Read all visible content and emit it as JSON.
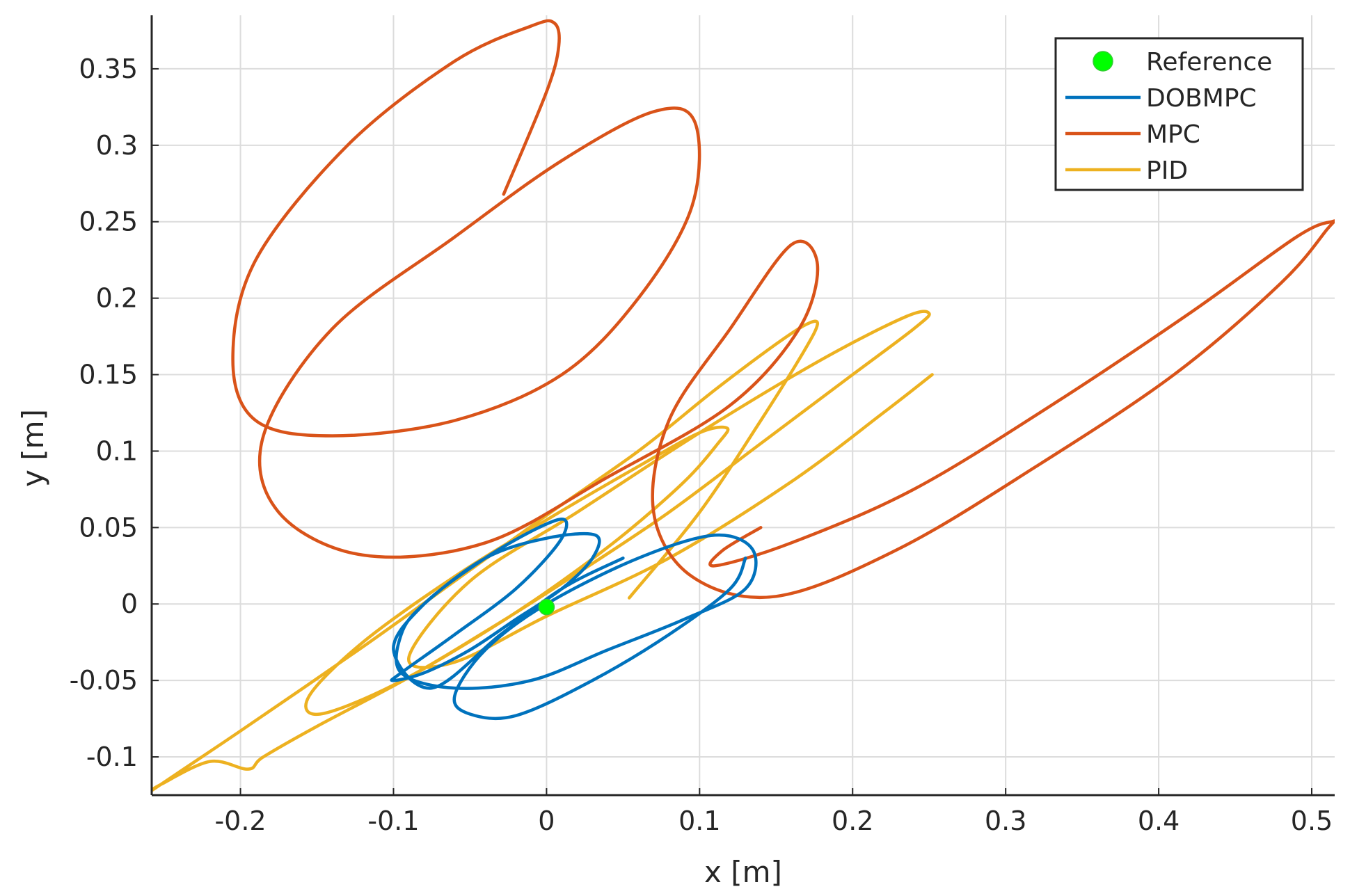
{
  "chart_data": {
    "type": "line",
    "title": "",
    "xlabel": "x [m]",
    "ylabel": "y [m]",
    "xlim": [
      -0.258,
      0.515
    ],
    "ylim": [
      -0.125,
      0.385
    ],
    "xticks": [
      -0.2,
      -0.1,
      0,
      0.1,
      0.2,
      0.3,
      0.4,
      0.5
    ],
    "xtick_labels": [
      "-0.2",
      "-0.1",
      "0",
      "0.1",
      "0.2",
      "0.3",
      "0.4",
      "0.5"
    ],
    "yticks": [
      -0.1,
      -0.05,
      0,
      0.05,
      0.1,
      0.15,
      0.2,
      0.25,
      0.3,
      0.35
    ],
    "ytick_labels": [
      "-0.1",
      "-0.05",
      "0",
      "0.05",
      "0.1",
      "0.15",
      "0.2",
      "0.25",
      "0.3",
      "0.35"
    ],
    "grid": true,
    "legend_position": "top-right",
    "reference": {
      "name": "Reference",
      "x": 0,
      "y": -0.002,
      "color": "#00ff00"
    },
    "series": [
      {
        "name": "PID",
        "color": "#EDB120",
        "x": [
          0.054,
          0.1,
          0.14,
          0.168,
          0.177,
          0.17,
          0.15,
          0.11,
          0.06,
          0.0,
          -0.06,
          -0.12,
          -0.2,
          -0.258,
          -0.252,
          -0.22,
          -0.195,
          -0.185,
          -0.15,
          -0.09,
          -0.03,
          0.01,
          0.05,
          0.09,
          0.112,
          0.118,
          0.1,
          0.06,
          0.0,
          -0.06,
          -0.12,
          -0.155,
          -0.148,
          -0.1,
          -0.04,
          0.02,
          0.08,
          0.14,
          0.2,
          0.24,
          0.25,
          0.235,
          0.18,
          0.1,
          0.02,
          -0.05,
          -0.09,
          -0.06,
          0.0,
          0.08,
          0.16,
          0.22,
          0.252
        ],
        "y": [
          0.004,
          0.06,
          0.12,
          0.165,
          0.183,
          0.183,
          0.17,
          0.14,
          0.1,
          0.058,
          0.015,
          -0.028,
          -0.083,
          -0.122,
          -0.118,
          -0.103,
          -0.108,
          -0.1,
          -0.08,
          -0.048,
          -0.012,
          0.015,
          0.045,
          0.08,
          0.105,
          0.115,
          0.112,
          0.09,
          0.055,
          0.018,
          -0.025,
          -0.06,
          -0.072,
          -0.053,
          -0.018,
          0.02,
          0.06,
          0.105,
          0.15,
          0.18,
          0.19,
          0.188,
          0.16,
          0.112,
          0.06,
          0.015,
          -0.035,
          -0.038,
          -0.008,
          0.03,
          0.08,
          0.125,
          0.15
        ]
      },
      {
        "name": "MPC",
        "color": "#D95319",
        "x": [
          -0.028,
          0.0,
          0.008,
          0.005,
          -0.01,
          -0.06,
          -0.13,
          -0.19,
          -0.205,
          -0.19,
          -0.14,
          -0.06,
          0.01,
          0.06,
          0.095,
          0.097,
          0.07,
          0.01,
          -0.06,
          -0.14,
          -0.185,
          -0.175,
          -0.12,
          -0.04,
          0.04,
          0.12,
          0.165,
          0.177,
          0.16,
          0.12,
          0.08,
          0.07,
          0.095,
          0.15,
          0.23,
          0.32,
          0.41,
          0.48,
          0.51,
          0.513,
          0.49,
          0.42,
          0.33,
          0.24,
          0.16,
          0.11,
          0.115,
          0.14
        ],
        "y": [
          0.268,
          0.335,
          0.365,
          0.38,
          0.378,
          0.355,
          0.3,
          0.225,
          0.16,
          0.12,
          0.11,
          0.12,
          0.15,
          0.2,
          0.26,
          0.315,
          0.322,
          0.29,
          0.24,
          0.18,
          0.11,
          0.06,
          0.032,
          0.04,
          0.083,
          0.13,
          0.18,
          0.222,
          0.235,
          0.18,
          0.12,
          0.06,
          0.018,
          0.005,
          0.036,
          0.09,
          0.15,
          0.21,
          0.245,
          0.25,
          0.24,
          0.19,
          0.13,
          0.075,
          0.04,
          0.025,
          0.035,
          0.05
        ]
      },
      {
        "name": "DOBMPC",
        "color": "#0072BD",
        "x": [
          0.13,
          0.12,
          0.08,
          0.03,
          -0.02,
          -0.05,
          -0.06,
          -0.04,
          0.0,
          0.06,
          0.11,
          0.135,
          0.13,
          0.09,
          0.04,
          -0.01,
          -0.06,
          -0.095,
          -0.095,
          -0.08,
          -0.04,
          0.0,
          0.032,
          0.03,
          0.01,
          -0.02,
          -0.05,
          -0.08,
          -0.1,
          -0.095,
          -0.06,
          -0.02,
          0.008,
          0.012,
          -0.005,
          -0.04,
          -0.08,
          -0.1,
          -0.075,
          -0.03,
          0.01,
          0.05
        ],
        "y": [
          0.03,
          0.01,
          -0.02,
          -0.05,
          -0.073,
          -0.072,
          -0.06,
          -0.03,
          0.0,
          0.03,
          0.045,
          0.035,
          0.01,
          -0.01,
          -0.03,
          -0.05,
          -0.055,
          -0.045,
          -0.02,
          0.0,
          0.03,
          0.043,
          0.045,
          0.03,
          0.01,
          -0.01,
          -0.03,
          -0.045,
          -0.05,
          -0.045,
          -0.02,
          0.01,
          0.04,
          0.055,
          0.05,
          0.03,
          0.0,
          -0.03,
          -0.055,
          -0.02,
          0.01,
          0.03
        ]
      }
    ],
    "legend": [
      {
        "label": "Reference",
        "kind": "marker",
        "color": "#00ff00"
      },
      {
        "label": "DOBMPC",
        "kind": "line",
        "color": "#0072BD"
      },
      {
        "label": "MPC",
        "kind": "line",
        "color": "#D95319"
      },
      {
        "label": "PID",
        "kind": "line",
        "color": "#EDB120"
      }
    ]
  }
}
